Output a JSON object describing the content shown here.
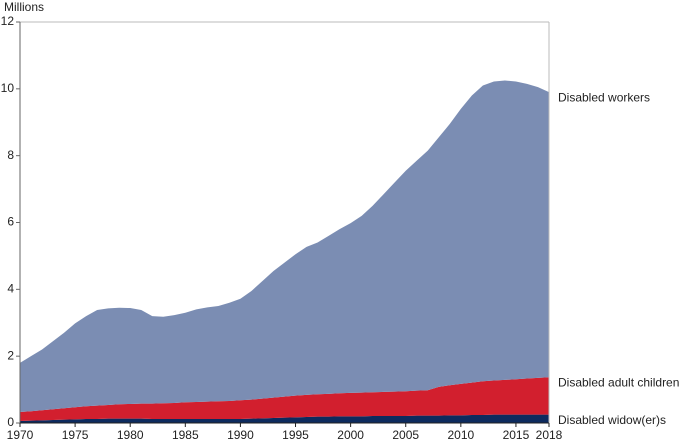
{
  "chart_data": {
    "type": "stacked_area",
    "y_axis_label": "Millions",
    "x": [
      1970,
      1971,
      1972,
      1973,
      1974,
      1975,
      1976,
      1977,
      1978,
      1979,
      1980,
      1981,
      1982,
      1983,
      1984,
      1985,
      1986,
      1987,
      1988,
      1989,
      1990,
      1991,
      1992,
      1993,
      1994,
      1995,
      1996,
      1997,
      1998,
      1999,
      2000,
      2001,
      2002,
      2003,
      2004,
      2005,
      2006,
      2007,
      2008,
      2009,
      2010,
      2011,
      2012,
      2013,
      2014,
      2015,
      2016,
      2017,
      2018
    ],
    "series": [
      {
        "name": "Disabled widow(er)s",
        "color": "#0d2b5e",
        "values": [
          0.06,
          0.07,
          0.08,
          0.09,
          0.1,
          0.11,
          0.12,
          0.12,
          0.13,
          0.13,
          0.13,
          0.13,
          0.12,
          0.12,
          0.12,
          0.12,
          0.12,
          0.12,
          0.12,
          0.12,
          0.12,
          0.13,
          0.14,
          0.15,
          0.16,
          0.17,
          0.18,
          0.19,
          0.19,
          0.2,
          0.2,
          0.2,
          0.21,
          0.21,
          0.21,
          0.21,
          0.22,
          0.22,
          0.22,
          0.23,
          0.23,
          0.24,
          0.24,
          0.25,
          0.25,
          0.25,
          0.25,
          0.25,
          0.25
        ]
      },
      {
        "name": "Disabled adult children",
        "color": "#d21f2e",
        "values": [
          0.27,
          0.28,
          0.3,
          0.32,
          0.34,
          0.36,
          0.38,
          0.4,
          0.41,
          0.43,
          0.44,
          0.45,
          0.46,
          0.47,
          0.48,
          0.5,
          0.51,
          0.52,
          0.53,
          0.54,
          0.56,
          0.57,
          0.59,
          0.61,
          0.63,
          0.65,
          0.66,
          0.67,
          0.68,
          0.69,
          0.7,
          0.71,
          0.71,
          0.72,
          0.73,
          0.74,
          0.75,
          0.76,
          0.86,
          0.9,
          0.94,
          0.97,
          1.01,
          1.02,
          1.04,
          1.06,
          1.08,
          1.1,
          1.12
        ]
      },
      {
        "name": "Disabled workers",
        "color": "#7b8db3",
        "values": [
          1.47,
          1.65,
          1.82,
          2.04,
          2.26,
          2.51,
          2.7,
          2.86,
          2.89,
          2.89,
          2.87,
          2.8,
          2.62,
          2.59,
          2.63,
          2.68,
          2.77,
          2.82,
          2.85,
          2.94,
          3.04,
          3.25,
          3.52,
          3.79,
          4.01,
          4.23,
          4.43,
          4.54,
          4.73,
          4.91,
          5.08,
          5.29,
          5.58,
          5.92,
          6.26,
          6.6,
          6.88,
          7.17,
          7.47,
          7.82,
          8.23,
          8.59,
          8.85,
          8.95,
          8.96,
          8.91,
          8.82,
          8.7,
          8.53
        ]
      }
    ],
    "xlim": [
      1970,
      2018
    ],
    "xticks": [
      1970,
      1975,
      1980,
      1985,
      1990,
      1995,
      2000,
      2005,
      2010,
      2015,
      2018
    ],
    "ylim": [
      0,
      12
    ],
    "yticks": [
      0,
      2,
      4,
      6,
      8,
      10,
      12
    ]
  }
}
